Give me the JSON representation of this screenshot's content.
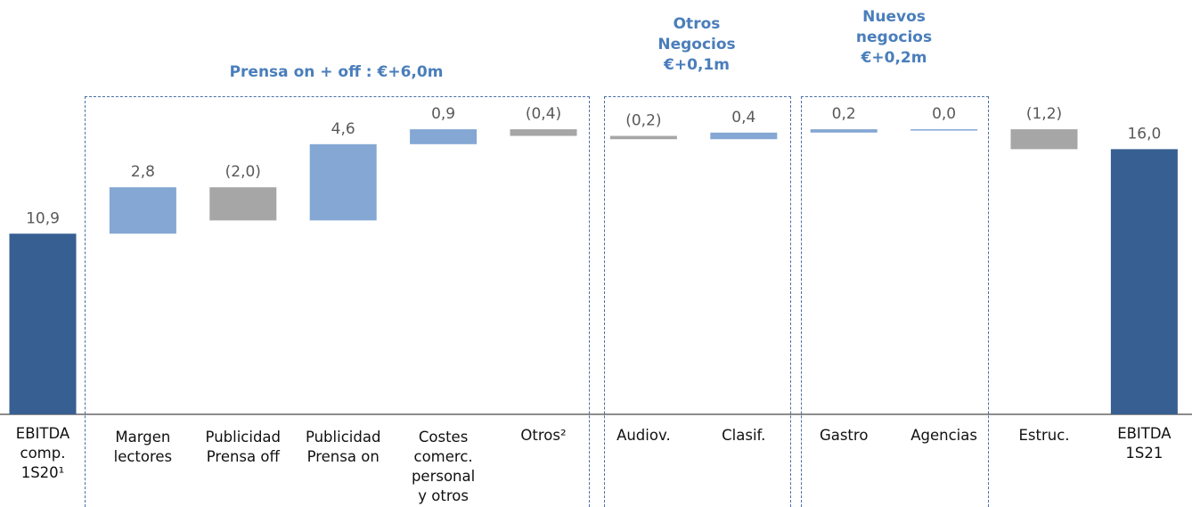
{
  "chart_data": {
    "type": "waterfall",
    "categories": [
      "EBITDA\ncomp.\n1S20¹",
      "Margen\nlectores",
      "Publicidad\nPrensa off",
      "Publicidad\nPrensa on",
      "Costes\ncomerc.\npersonal\ny otros",
      "Otros²",
      "Audiov.",
      "Clasif.",
      "Gastro",
      "Agencias",
      "Estruc.",
      "EBITDA\n1S21"
    ],
    "values": [
      10.9,
      2.8,
      -2.0,
      4.6,
      0.9,
      -0.4,
      -0.2,
      0.4,
      0.2,
      0.0,
      -1.2,
      16.0
    ],
    "value_labels": [
      "10,9",
      "2,8",
      "(2,0)",
      "4,6",
      "0,9",
      "(0,4)",
      "(0,2)",
      "0,4",
      "0,2",
      "0,0",
      "(1,2)",
      "16,0"
    ],
    "measure": [
      "absolute",
      "relative",
      "relative",
      "relative",
      "relative",
      "relative",
      "relative",
      "relative",
      "relative",
      "relative",
      "relative",
      "total"
    ],
    "colors": {
      "total": "#375f92",
      "increase": "#84a7d3",
      "decrease": "#a6a6a6"
    },
    "groups": [
      {
        "label": "Prensa on + off : €+6,0m"
      },
      {
        "label": "Otros\nNegocios\n€+0,1m"
      },
      {
        "label": "Nuevos\nnegocios\n€+0,2m"
      }
    ],
    "ylim": [
      0,
      20
    ]
  }
}
